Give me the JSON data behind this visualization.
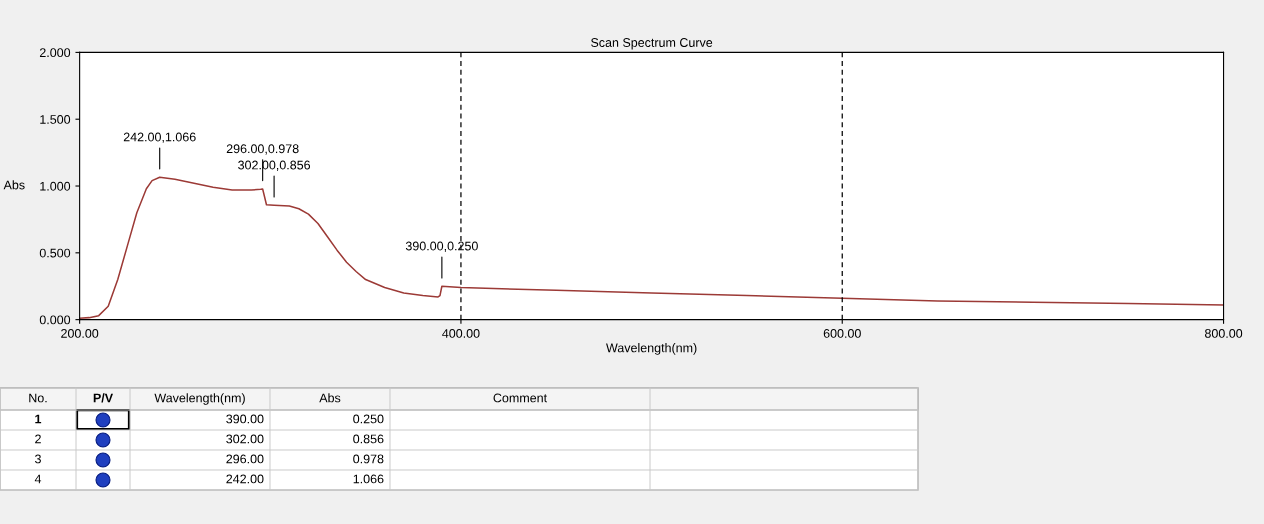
{
  "chart_data": {
    "type": "line",
    "title": "Scan Spectrum Curve",
    "xlabel": "Wavelength(nm)",
    "ylabel": "Abs",
    "x": [
      200,
      205,
      210,
      215,
      220,
      225,
      230,
      235,
      238,
      242,
      250,
      260,
      270,
      280,
      290,
      295,
      296,
      298,
      302,
      310,
      315,
      320,
      325,
      330,
      335,
      340,
      345,
      350,
      360,
      370,
      380,
      388,
      389,
      390,
      400,
      450,
      500,
      550,
      600,
      650,
      700,
      750,
      800
    ],
    "series": [
      {
        "color": "#9c3a36",
        "values": [
          0.01,
          0.015,
          0.03,
          0.1,
          0.3,
          0.55,
          0.8,
          0.98,
          1.04,
          1.066,
          1.05,
          1.02,
          0.99,
          0.97,
          0.97,
          0.975,
          0.978,
          0.86,
          0.856,
          0.85,
          0.83,
          0.79,
          0.72,
          0.62,
          0.52,
          0.43,
          0.36,
          0.3,
          0.24,
          0.2,
          0.18,
          0.17,
          0.18,
          0.25,
          0.24,
          0.22,
          0.2,
          0.18,
          0.16,
          0.14,
          0.13,
          0.12,
          0.11
        ]
      }
    ],
    "xlim": [
      200,
      800
    ],
    "ylim": [
      0,
      2
    ],
    "xticks": [
      {
        "value": 200,
        "label": "200.00"
      },
      {
        "value": 400,
        "label": "400.00"
      },
      {
        "value": 600,
        "label": "600.00"
      },
      {
        "value": 800,
        "label": "800.00"
      }
    ],
    "yticks": [
      {
        "value": 0,
        "label": "0.000"
      },
      {
        "value": 0.5,
        "label": "0.500"
      },
      {
        "value": 1,
        "label": "1.000"
      },
      {
        "value": 1.5,
        "label": "1.500"
      },
      {
        "value": 2,
        "label": "2.000"
      }
    ],
    "ref_lines": [
      {
        "axis": "x",
        "value": 400,
        "color": "#000000",
        "line_style": "dashed"
      },
      {
        "axis": "x",
        "value": 600,
        "color": "#000000",
        "line_style": "dashed"
      }
    ],
    "grid": false,
    "legend": false,
    "marker": "none",
    "line_style": "solid",
    "annotations": [
      {
        "text": "242.00,1.066",
        "x": 242,
        "y": 1.066
      },
      {
        "text": "296.00,0.978",
        "x": 296,
        "y": 0.978
      },
      {
        "text": "302.00,0.856",
        "x": 302,
        "y": 0.856
      },
      {
        "text": "390.00,0.250",
        "x": 390,
        "y": 0.25
      },
      "No.",
      "P/V",
      "Wavelength(nm)",
      "Abs",
      "Comment",
      "1",
      "390.00",
      "0.250",
      "2",
      "302.00",
      "0.856",
      "3",
      "296.00",
      "0.978",
      "4",
      "242.00",
      "1.066"
    ]
  }
}
